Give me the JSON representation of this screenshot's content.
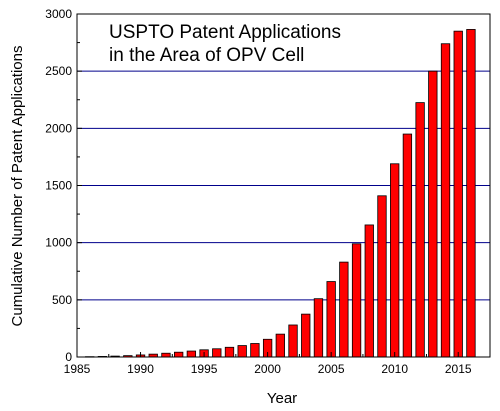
{
  "chart_data": {
    "type": "bar",
    "title_lines": [
      "USPTO Patent Applications",
      "in the Area of OPV Cell"
    ],
    "xlabel": "Year",
    "ylabel": "Cumulative Number of Patent Applications",
    "xlim": [
      1985,
      2017.5
    ],
    "ylim": [
      0,
      3000
    ],
    "x_ticks": [
      1985,
      1990,
      1995,
      2000,
      2005,
      2010,
      2015
    ],
    "y_ticks": [
      0,
      500,
      1000,
      1500,
      2000,
      2500,
      3000
    ],
    "grid": "horizontal",
    "legend": "none",
    "colors": {
      "bar_fill": "#ff0000",
      "bar_stroke": "#000000",
      "grid": "#00008b",
      "axis": "#000000"
    },
    "x": [
      1986,
      1987,
      1988,
      1989,
      1990,
      1991,
      1992,
      1993,
      1994,
      1995,
      1996,
      1997,
      1998,
      1999,
      2000,
      2001,
      2002,
      2003,
      2004,
      2005,
      2006,
      2007,
      2008,
      2009,
      2010,
      2011,
      2012,
      2013,
      2014,
      2015,
      2016
    ],
    "values": [
      3,
      5,
      8,
      12,
      18,
      25,
      33,
      42,
      52,
      63,
      72,
      85,
      100,
      118,
      155,
      200,
      280,
      375,
      510,
      660,
      830,
      990,
      1155,
      1410,
      1690,
      1950,
      2225,
      2500,
      2740,
      2850,
      2865
    ]
  }
}
